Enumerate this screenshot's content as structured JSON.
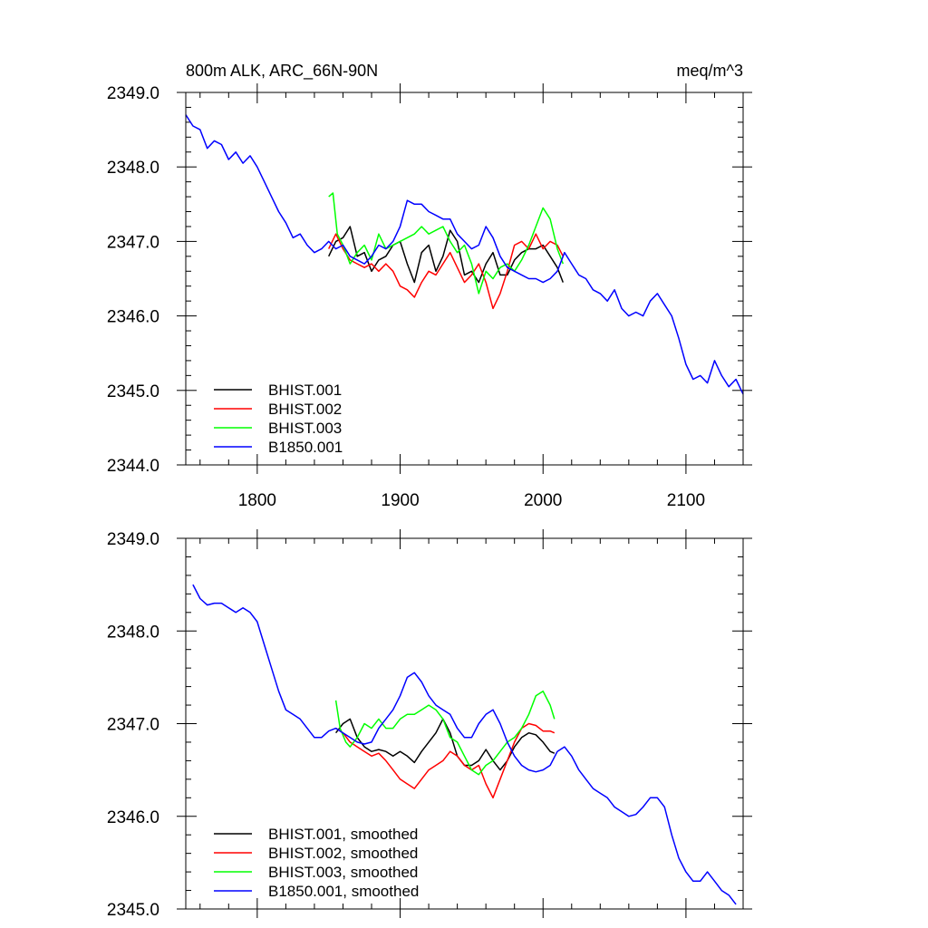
{
  "chart_data": [
    {
      "type": "line",
      "title_left": "800m ALK, ARC_66N-90N",
      "title_right": "meq/m^3",
      "xlabel": "",
      "ylabel": "",
      "xlim": [
        1750,
        2140
      ],
      "ylim": [
        2344.0,
        2349.0
      ],
      "xticks": [
        1800,
        1900,
        2000,
        2100
      ],
      "xtick_labels": [
        "1800",
        "1900",
        "2000",
        "2100"
      ],
      "yticks": [
        2344.0,
        2345.0,
        2346.0,
        2347.0,
        2348.0,
        2349.0
      ],
      "ytick_labels": [
        "2344.0",
        "2345.0",
        "2346.0",
        "2347.0",
        "2348.0",
        "2349.0"
      ],
      "legend_position": "bottom-left",
      "series": [
        {
          "name": "BHIST.001",
          "color": "#000000",
          "x": [
            1850,
            1855,
            1860,
            1865,
            1870,
            1875,
            1880,
            1885,
            1890,
            1895,
            1900,
            1905,
            1910,
            1915,
            1920,
            1925,
            1930,
            1935,
            1940,
            1945,
            1950,
            1955,
            1960,
            1965,
            1970,
            1975,
            1980,
            1985,
            1990,
            1995,
            2000,
            2005,
            2010,
            2014
          ],
          "y": [
            2346.8,
            2347.0,
            2347.05,
            2347.2,
            2346.8,
            2346.85,
            2346.6,
            2346.75,
            2346.8,
            2346.95,
            2347.0,
            2346.7,
            2346.45,
            2346.85,
            2346.95,
            2346.6,
            2346.8,
            2347.15,
            2347.0,
            2346.55,
            2346.6,
            2346.45,
            2346.7,
            2346.85,
            2346.55,
            2346.55,
            2346.75,
            2346.85,
            2346.9,
            2346.9,
            2346.95,
            2346.8,
            2346.65,
            2346.45
          ]
        },
        {
          "name": "BHIST.002",
          "color": "#ff0000",
          "x": [
            1850,
            1855,
            1860,
            1865,
            1870,
            1875,
            1880,
            1885,
            1890,
            1895,
            1900,
            1905,
            1910,
            1915,
            1920,
            1925,
            1930,
            1935,
            1940,
            1945,
            1950,
            1955,
            1960,
            1965,
            1970,
            1975,
            1980,
            1985,
            1990,
            1995,
            2000,
            2005,
            2010,
            2014
          ],
          "y": [
            2346.9,
            2347.1,
            2346.9,
            2346.75,
            2346.7,
            2346.65,
            2346.7,
            2346.6,
            2346.7,
            2346.6,
            2346.4,
            2346.35,
            2346.25,
            2346.45,
            2346.6,
            2346.55,
            2346.7,
            2346.85,
            2346.65,
            2346.45,
            2346.55,
            2346.7,
            2346.45,
            2346.1,
            2346.3,
            2346.6,
            2346.95,
            2347.0,
            2346.9,
            2347.1,
            2346.9,
            2347.0,
            2346.95,
            2346.8
          ]
        },
        {
          "name": "BHIST.003",
          "color": "#00ff00",
          "x": [
            1850,
            1853,
            1856,
            1860,
            1865,
            1870,
            1875,
            1880,
            1885,
            1890,
            1895,
            1900,
            1905,
            1910,
            1915,
            1920,
            1925,
            1930,
            1935,
            1940,
            1945,
            1950,
            1955,
            1960,
            1965,
            1970,
            1975,
            1980,
            1985,
            1990,
            1995,
            2000,
            2005,
            2010,
            2014
          ],
          "y": [
            2347.6,
            2347.65,
            2347.1,
            2346.95,
            2346.7,
            2346.85,
            2346.95,
            2346.75,
            2347.1,
            2346.9,
            2346.95,
            2347.0,
            2347.05,
            2347.1,
            2347.2,
            2347.1,
            2347.15,
            2347.2,
            2347.0,
            2346.85,
            2346.95,
            2346.7,
            2346.3,
            2346.6,
            2346.5,
            2346.65,
            2346.7,
            2346.6,
            2346.75,
            2346.95,
            2347.2,
            2347.45,
            2347.3,
            2346.9,
            2346.7
          ]
        },
        {
          "name": "B1850.001",
          "color": "#0000ff",
          "x": [
            1750,
            1755,
            1760,
            1765,
            1770,
            1775,
            1780,
            1785,
            1790,
            1795,
            1800,
            1805,
            1810,
            1815,
            1820,
            1825,
            1830,
            1835,
            1840,
            1845,
            1850,
            1855,
            1860,
            1865,
            1870,
            1875,
            1880,
            1885,
            1890,
            1895,
            1900,
            1905,
            1910,
            1915,
            1920,
            1925,
            1930,
            1935,
            1940,
            1945,
            1950,
            1955,
            1960,
            1965,
            1970,
            1975,
            1980,
            1985,
            1990,
            1995,
            2000,
            2005,
            2010,
            2015,
            2020,
            2025,
            2030,
            2035,
            2040,
            2045,
            2050,
            2055,
            2060,
            2065,
            2070,
            2075,
            2080,
            2085,
            2090,
            2095,
            2100,
            2105,
            2110,
            2115,
            2120,
            2125,
            2130,
            2135,
            2140
          ],
          "y": [
            2348.7,
            2348.55,
            2348.5,
            2348.25,
            2348.35,
            2348.3,
            2348.1,
            2348.2,
            2348.05,
            2348.15,
            2348.0,
            2347.8,
            2347.6,
            2347.4,
            2347.25,
            2347.05,
            2347.1,
            2346.95,
            2346.85,
            2346.9,
            2347.0,
            2346.9,
            2346.95,
            2346.8,
            2346.75,
            2346.7,
            2346.8,
            2346.95,
            2346.9,
            2347.0,
            2347.2,
            2347.55,
            2347.5,
            2347.5,
            2347.4,
            2347.35,
            2347.3,
            2347.3,
            2347.1,
            2347.0,
            2346.9,
            2346.95,
            2347.2,
            2347.05,
            2346.8,
            2346.65,
            2346.6,
            2346.55,
            2346.5,
            2346.5,
            2346.45,
            2346.5,
            2346.6,
            2346.85,
            2346.7,
            2346.55,
            2346.5,
            2346.35,
            2346.3,
            2346.2,
            2346.35,
            2346.1,
            2346.0,
            2346.05,
            2346.0,
            2346.2,
            2346.3,
            2346.15,
            2346.0,
            2345.7,
            2345.35,
            2345.15,
            2345.2,
            2345.1,
            2345.4,
            2345.2,
            2345.05,
            2345.15,
            2344.95
          ]
        }
      ]
    },
    {
      "type": "line",
      "xlabel": "",
      "ylabel": "",
      "xlim": [
        1750,
        2140
      ],
      "ylim": [
        2345.0,
        2349.0
      ],
      "xticks": [
        1800,
        1900,
        2000,
        2100
      ],
      "yticks": [
        2345.0,
        2346.0,
        2347.0,
        2348.0,
        2349.0
      ],
      "ytick_labels": [
        "2345.0",
        "2346.0",
        "2347.0",
        "2348.0",
        "2349.0"
      ],
      "legend_position": "bottom-left",
      "series": [
        {
          "name": "BHIST.001, smoothed",
          "color": "#000000",
          "x": [
            1855,
            1860,
            1865,
            1870,
            1875,
            1880,
            1885,
            1890,
            1895,
            1900,
            1905,
            1910,
            1915,
            1920,
            1925,
            1930,
            1935,
            1940,
            1945,
            1950,
            1955,
            1960,
            1965,
            1970,
            1975,
            1980,
            1985,
            1990,
            1995,
            2000,
            2005,
            2008
          ],
          "y": [
            2346.9,
            2347.0,
            2347.05,
            2346.85,
            2346.75,
            2346.7,
            2346.72,
            2346.7,
            2346.65,
            2346.7,
            2346.65,
            2346.58,
            2346.7,
            2346.8,
            2346.9,
            2347.05,
            2346.9,
            2346.65,
            2346.55,
            2346.55,
            2346.6,
            2346.72,
            2346.6,
            2346.5,
            2346.6,
            2346.75,
            2346.85,
            2346.9,
            2346.88,
            2346.8,
            2346.7,
            2346.68
          ]
        },
        {
          "name": "BHIST.002, smoothed",
          "color": "#ff0000",
          "x": [
            1855,
            1860,
            1865,
            1870,
            1875,
            1880,
            1885,
            1890,
            1895,
            1900,
            1905,
            1910,
            1915,
            1920,
            1925,
            1930,
            1935,
            1940,
            1945,
            1950,
            1955,
            1960,
            1965,
            1970,
            1975,
            1980,
            1985,
            1990,
            1995,
            2000,
            2005,
            2008
          ],
          "y": [
            2346.95,
            2346.9,
            2346.8,
            2346.75,
            2346.7,
            2346.65,
            2346.68,
            2346.6,
            2346.5,
            2346.4,
            2346.35,
            2346.3,
            2346.4,
            2346.5,
            2346.55,
            2346.6,
            2346.7,
            2346.65,
            2346.55,
            2346.5,
            2346.55,
            2346.35,
            2346.2,
            2346.4,
            2346.6,
            2346.8,
            2346.95,
            2347.0,
            2346.98,
            2346.92,
            2346.92,
            2346.9
          ]
        },
        {
          "name": "BHIST.003, smoothed",
          "color": "#00ff00",
          "x": [
            1855,
            1858,
            1862,
            1865,
            1870,
            1875,
            1880,
            1885,
            1890,
            1895,
            1900,
            1905,
            1910,
            1915,
            1920,
            1925,
            1930,
            1935,
            1940,
            1945,
            1950,
            1955,
            1960,
            1965,
            1970,
            1975,
            1980,
            1985,
            1990,
            1995,
            2000,
            2005,
            2008
          ],
          "y": [
            2347.25,
            2346.95,
            2346.8,
            2346.75,
            2346.85,
            2347.0,
            2346.95,
            2347.05,
            2346.95,
            2346.95,
            2347.05,
            2347.1,
            2347.1,
            2347.15,
            2347.2,
            2347.15,
            2347.05,
            2346.85,
            2346.8,
            2346.65,
            2346.5,
            2346.45,
            2346.55,
            2346.6,
            2346.7,
            2346.8,
            2346.85,
            2346.95,
            2347.1,
            2347.3,
            2347.35,
            2347.2,
            2347.05
          ]
        },
        {
          "name": "B1850.001, smoothed",
          "color": "#0000ff",
          "x": [
            1755,
            1760,
            1765,
            1770,
            1775,
            1780,
            1785,
            1790,
            1795,
            1800,
            1805,
            1810,
            1815,
            1820,
            1825,
            1830,
            1835,
            1840,
            1845,
            1850,
            1855,
            1860,
            1865,
            1870,
            1875,
            1880,
            1885,
            1890,
            1895,
            1900,
            1905,
            1910,
            1915,
            1920,
            1925,
            1930,
            1935,
            1940,
            1945,
            1950,
            1955,
            1960,
            1965,
            1970,
            1975,
            1980,
            1985,
            1990,
            1995,
            2000,
            2005,
            2010,
            2015,
            2020,
            2025,
            2030,
            2035,
            2040,
            2045,
            2050,
            2055,
            2060,
            2065,
            2070,
            2075,
            2080,
            2085,
            2090,
            2095,
            2100,
            2105,
            2110,
            2115,
            2120,
            2125,
            2130,
            2135
          ],
          "y": [
            2348.5,
            2348.35,
            2348.28,
            2348.3,
            2348.3,
            2348.25,
            2348.2,
            2348.25,
            2348.2,
            2348.1,
            2347.85,
            2347.6,
            2347.35,
            2347.15,
            2347.1,
            2347.05,
            2346.95,
            2346.85,
            2346.85,
            2346.92,
            2346.95,
            2346.9,
            2346.85,
            2346.8,
            2346.78,
            2346.8,
            2346.95,
            2347.05,
            2347.15,
            2347.3,
            2347.5,
            2347.55,
            2347.45,
            2347.3,
            2347.2,
            2347.15,
            2347.1,
            2346.95,
            2346.85,
            2346.85,
            2347.0,
            2347.1,
            2347.15,
            2347.0,
            2346.8,
            2346.65,
            2346.55,
            2346.5,
            2346.48,
            2346.5,
            2346.55,
            2346.7,
            2346.75,
            2346.65,
            2346.5,
            2346.4,
            2346.3,
            2346.25,
            2346.2,
            2346.1,
            2346.05,
            2346.0,
            2346.02,
            2346.1,
            2346.2,
            2346.2,
            2346.1,
            2345.8,
            2345.55,
            2345.4,
            2345.3,
            2345.3,
            2345.4,
            2345.3,
            2345.2,
            2345.15,
            2345.05
          ]
        }
      ]
    }
  ]
}
